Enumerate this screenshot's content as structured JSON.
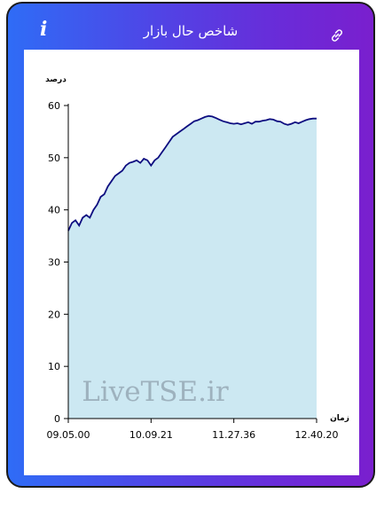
{
  "header": {
    "title": "شاخص حال بازار",
    "info_icon": "i",
    "link_icon": "link-icon"
  },
  "watermark": "LiveTSE.ir",
  "chart_data": {
    "type": "area",
    "ylabel": "درصد",
    "xlabel": "زمان",
    "ylim": [
      0,
      60
    ],
    "y_ticks": [
      0,
      10,
      20,
      30,
      40,
      50,
      60
    ],
    "x_ticks": [
      "09.05.00",
      "10.09.21",
      "11.27.36",
      "12.40.20"
    ],
    "line_color": "#0d0d80",
    "fill_color": "#cce8f2",
    "series": [
      {
        "values": [
          36,
          37.5,
          38,
          37,
          38.5,
          39,
          38.5,
          40,
          41,
          42.5,
          43,
          44.5,
          45.5,
          46.5,
          47,
          47.5,
          48.5,
          49,
          49.2,
          49.5,
          49,
          49.8,
          49.5,
          48.5,
          49.5,
          50,
          51,
          52,
          53,
          54,
          54.5,
          55,
          55.5,
          56,
          56.5,
          57,
          57.2,
          57.5,
          57.8,
          58,
          57.9,
          57.6,
          57.3,
          57.0,
          56.8,
          56.6,
          56.5,
          56.6,
          56.4,
          56.6,
          56.8,
          56.5,
          56.9,
          56.9,
          57.1,
          57.2,
          57.4,
          57.3,
          57.0,
          56.9,
          56.5,
          56.3,
          56.5,
          56.8,
          56.6,
          56.9,
          57.2,
          57.4,
          57.5,
          57.5
        ]
      }
    ],
    "grid": false
  }
}
